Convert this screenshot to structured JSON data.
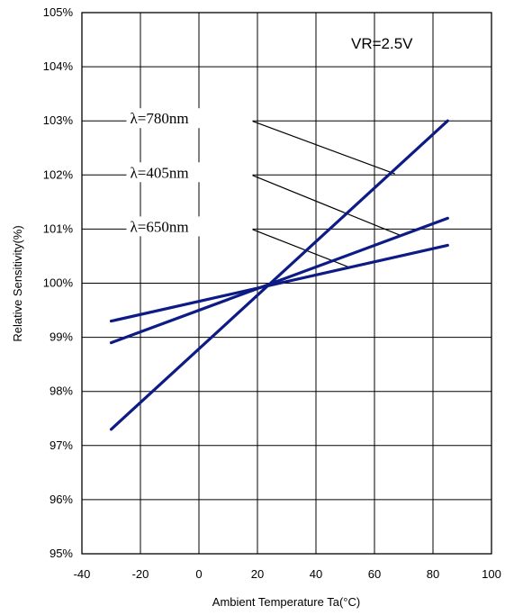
{
  "chart_data": {
    "type": "line",
    "xlabel": "Ambient Temperature Ta(°C)",
    "ylabel": "Relative Sensitivity(%)",
    "xlim": [
      -40,
      100
    ],
    "ylim": [
      95,
      105
    ],
    "x_ticks": [
      "-40",
      "-20",
      "0",
      "20",
      "40",
      "60",
      "80",
      "100"
    ],
    "y_ticks": [
      "95%",
      "96%",
      "97%",
      "98%",
      "99%",
      "100%",
      "101%",
      "102%",
      "103%",
      "104%",
      "105%"
    ],
    "grid": true,
    "condition": "VR=2.5V",
    "line_color": "#0d1b86",
    "series": [
      {
        "name": "λ=780nm",
        "x": [
          -30,
          85
        ],
        "values": [
          97.3,
          103.0
        ]
      },
      {
        "name": "λ=405nm",
        "x": [
          -30,
          85
        ],
        "values": [
          98.9,
          101.2
        ]
      },
      {
        "name": "λ=650nm",
        "x": [
          -30,
          85
        ],
        "values": [
          99.3,
          100.7
        ]
      }
    ]
  }
}
